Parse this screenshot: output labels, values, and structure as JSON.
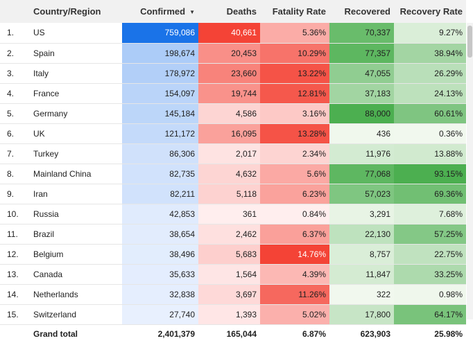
{
  "headers": {
    "country": "Country/Region",
    "confirmed": "Confirmed",
    "deaths": "Deaths",
    "fatality_rate": "Fatality Rate",
    "recovered": "Recovered",
    "recovery_rate": "Recovery Rate"
  },
  "sort": {
    "column": "confirmed",
    "direction": "descending",
    "icon": "sort-down-icon"
  },
  "heat_colors": {
    "confirmed": {
      "low": "#e8f0fe",
      "high": "#1a73e8"
    },
    "deaths": {
      "low": "#ffeeee",
      "high": "#f44336"
    },
    "fatality_rate": {
      "low": "#ffeeee",
      "high": "#f44336"
    },
    "recovered": {
      "low": "#f1f8ee",
      "high": "#4caf50"
    },
    "recovery_rate": {
      "low": "#f1f8ee",
      "high": "#4caf50"
    }
  },
  "rows": [
    {
      "index": "1.",
      "country": "US",
      "confirmed": "759,086",
      "deaths": "40,661",
      "fatality_rate": "5.36%",
      "recovered": "70,337",
      "recovery_rate": "9.27%"
    },
    {
      "index": "2.",
      "country": "Spain",
      "confirmed": "198,674",
      "deaths": "20,453",
      "fatality_rate": "10.29%",
      "recovered": "77,357",
      "recovery_rate": "38.94%"
    },
    {
      "index": "3.",
      "country": "Italy",
      "confirmed": "178,972",
      "deaths": "23,660",
      "fatality_rate": "13.22%",
      "recovered": "47,055",
      "recovery_rate": "26.29%"
    },
    {
      "index": "4.",
      "country": "France",
      "confirmed": "154,097",
      "deaths": "19,744",
      "fatality_rate": "12.81%",
      "recovered": "37,183",
      "recovery_rate": "24.13%"
    },
    {
      "index": "5.",
      "country": "Germany",
      "confirmed": "145,184",
      "deaths": "4,586",
      "fatality_rate": "3.16%",
      "recovered": "88,000",
      "recovery_rate": "60.61%"
    },
    {
      "index": "6.",
      "country": "UK",
      "confirmed": "121,172",
      "deaths": "16,095",
      "fatality_rate": "13.28%",
      "recovered": "436",
      "recovery_rate": "0.36%"
    },
    {
      "index": "7.",
      "country": "Turkey",
      "confirmed": "86,306",
      "deaths": "2,017",
      "fatality_rate": "2.34%",
      "recovered": "11,976",
      "recovery_rate": "13.88%"
    },
    {
      "index": "8.",
      "country": "Mainland China",
      "confirmed": "82,735",
      "deaths": "4,632",
      "fatality_rate": "5.6%",
      "recovered": "77,068",
      "recovery_rate": "93.15%"
    },
    {
      "index": "9.",
      "country": "Iran",
      "confirmed": "82,211",
      "deaths": "5,118",
      "fatality_rate": "6.23%",
      "recovered": "57,023",
      "recovery_rate": "69.36%"
    },
    {
      "index": "10.",
      "country": "Russia",
      "confirmed": "42,853",
      "deaths": "361",
      "fatality_rate": "0.84%",
      "recovered": "3,291",
      "recovery_rate": "7.68%"
    },
    {
      "index": "11.",
      "country": "Brazil",
      "confirmed": "38,654",
      "deaths": "2,462",
      "fatality_rate": "6.37%",
      "recovered": "22,130",
      "recovery_rate": "57.25%"
    },
    {
      "index": "12.",
      "country": "Belgium",
      "confirmed": "38,496",
      "deaths": "5,683",
      "fatality_rate": "14.76%",
      "recovered": "8,757",
      "recovery_rate": "22.75%"
    },
    {
      "index": "13.",
      "country": "Canada",
      "confirmed": "35,633",
      "deaths": "1,564",
      "fatality_rate": "4.39%",
      "recovered": "11,847",
      "recovery_rate": "33.25%"
    },
    {
      "index": "14.",
      "country": "Netherlands",
      "confirmed": "32,838",
      "deaths": "3,697",
      "fatality_rate": "11.26%",
      "recovered": "322",
      "recovery_rate": "0.98%"
    },
    {
      "index": "15.",
      "country": "Switzerland",
      "confirmed": "27,740",
      "deaths": "1,393",
      "fatality_rate": "5.02%",
      "recovered": "17,800",
      "recovery_rate": "64.17%"
    }
  ],
  "grand_total": {
    "label": "Grand total",
    "confirmed": "2,401,379",
    "deaths": "165,044",
    "fatality_rate": "6.87%",
    "recovered": "623,903",
    "recovery_rate": "25.98%"
  }
}
